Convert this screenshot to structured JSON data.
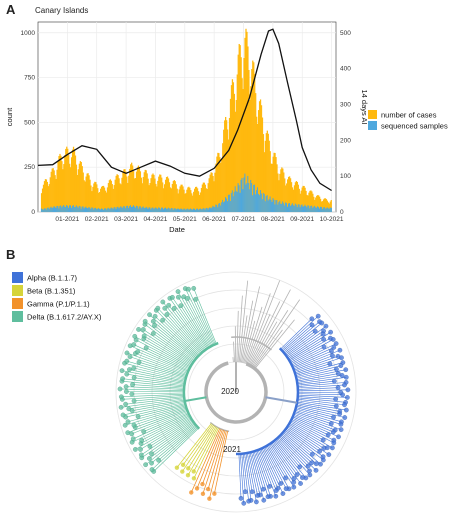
{
  "panel_a": {
    "letter": "A",
    "subtitle": "Canary Islands"
  },
  "panel_b": {
    "letter": "B"
  },
  "chart_data": [
    {
      "type": "bar",
      "subtitle": "Canary Islands",
      "xlabel": "Date",
      "ylabel": "count",
      "y2label": "14 days AI",
      "ylim": [
        0,
        1060
      ],
      "y2lim": [
        0,
        530
      ],
      "yticks": [
        0,
        250,
        500,
        750,
        1000
      ],
      "y2ticks": [
        0,
        100,
        200,
        300,
        400,
        500
      ],
      "y2ticks_labels": [
        "0",
        "100",
        "200",
        "300",
        "400",
        "500"
      ],
      "yticks_labels": [
        "0",
        "250",
        "500",
        "750",
        "1000"
      ],
      "xticks_labels": [
        "01-2021",
        "02-2021",
        "03-2021",
        "04-2021",
        "05-2021",
        "06-2021",
        "07-2021",
        "08-2021",
        "09-2021",
        "10-2021"
      ],
      "xticks_month_index": [
        1,
        2,
        3,
        4,
        5,
        6,
        7,
        8,
        9,
        10
      ],
      "x_range_months": [
        0.0,
        10.15
      ],
      "grid": true,
      "legend_position": "right",
      "colors": {
        "cases": "#FFB90F",
        "sequenced": "#4EA8DE",
        "ai_line": "#111111",
        "grid": "#ebebeb"
      },
      "series": [
        {
          "name": "number of cases",
          "kind": "bars",
          "x_month": [
            0.17,
            0.5,
            0.83,
            1.17,
            1.5,
            1.83,
            2.17,
            2.5,
            2.83,
            3.17,
            3.5,
            3.83,
            4.17,
            4.5,
            4.83,
            5.17,
            5.5,
            5.83,
            6.17,
            6.5,
            6.83,
            7.0,
            7.17,
            7.5,
            7.83,
            8.17,
            8.5,
            8.83,
            9.17,
            9.5,
            9.83
          ],
          "values": [
            140,
            210,
            300,
            310,
            220,
            150,
            120,
            160,
            190,
            230,
            210,
            180,
            175,
            160,
            130,
            115,
            120,
            170,
            300,
            550,
            780,
            880,
            820,
            560,
            360,
            230,
            170,
            140,
            110,
            80,
            60
          ]
        },
        {
          "name": "sequenced samples",
          "kind": "bars",
          "x_month": [
            0.17,
            0.5,
            0.83,
            1.17,
            1.5,
            1.83,
            2.17,
            2.5,
            2.83,
            3.17,
            3.5,
            3.83,
            4.17,
            4.5,
            4.83,
            5.17,
            5.5,
            5.83,
            6.17,
            6.5,
            6.83,
            7.0,
            7.17,
            7.5,
            7.83,
            8.17,
            8.5,
            8.83,
            9.17,
            9.5,
            9.83
          ],
          "values": [
            15,
            25,
            30,
            30,
            25,
            20,
            15,
            20,
            25,
            30,
            25,
            20,
            20,
            18,
            15,
            15,
            15,
            20,
            40,
            80,
            130,
            170,
            150,
            100,
            70,
            50,
            40,
            35,
            30,
            25,
            20
          ]
        },
        {
          "name": "14 days AI",
          "kind": "line",
          "axis": "right",
          "x_month": [
            0.0,
            0.5,
            1.0,
            1.5,
            2.0,
            2.5,
            3.0,
            3.5,
            4.0,
            4.5,
            5.0,
            5.5,
            6.0,
            6.5,
            6.8,
            7.2,
            7.6,
            7.85,
            8.0,
            8.2,
            8.5,
            8.8,
            9.0,
            9.3,
            9.6,
            10.0
          ],
          "values": [
            130,
            132,
            160,
            185,
            175,
            125,
            108,
            125,
            142,
            128,
            108,
            100,
            122,
            172,
            228,
            318,
            440,
            505,
            510,
            470,
            360,
            255,
            180,
            118,
            80,
            60
          ]
        }
      ]
    },
    {
      "type": "tree",
      "layout": "circular",
      "ring_labels": [
        "2020",
        "2021"
      ],
      "legend": [
        {
          "label": "Alpha (B.1.1.7)",
          "color": "#3F72D8"
        },
        {
          "label": "Beta (B.1.351)",
          "color": "#D6D43A"
        },
        {
          "label": "Gamma (P.1/P.1.1)",
          "color": "#F2922B"
        },
        {
          "label": "Delta (B.1.617.2/AY.X)",
          "color": "#5FBE9E"
        }
      ],
      "other_lineages_color": "#b3b3b3"
    }
  ]
}
